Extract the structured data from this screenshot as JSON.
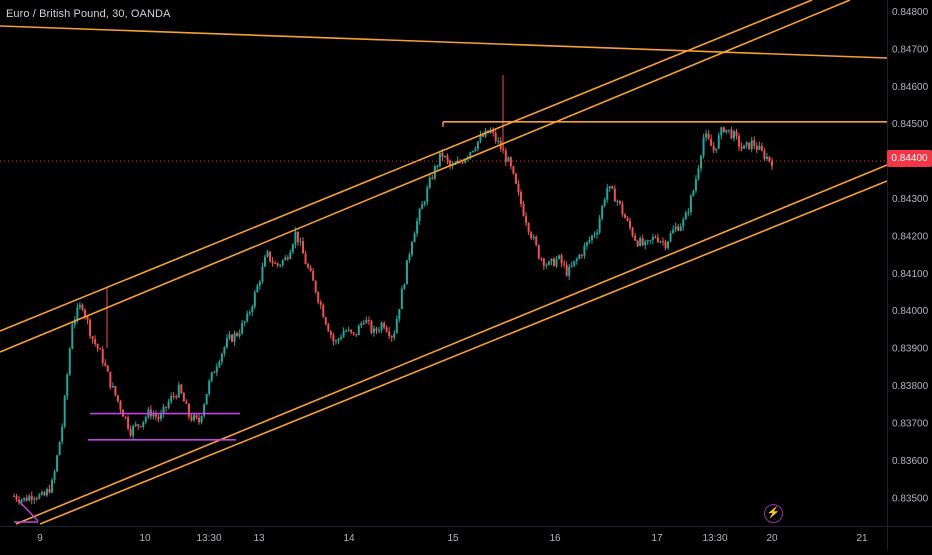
{
  "title": "Euro / British Pound, 30, OANDA",
  "current_price": "0.84400",
  "colors": {
    "up": "#26a69a",
    "down": "#ef5350",
    "trendline": "#f7a035",
    "range": "#c542e8",
    "price_line": "#f23645",
    "axis_text": "#b2b5be"
  },
  "icons": {
    "bolt": "lightning-bolt-icon"
  },
  "chart_data": {
    "type": "candlestick",
    "title": "Euro / British Pound, 30, OANDA",
    "ylim": [
      0.8347,
      0.8482
    ],
    "y_ticks": [
      "0.84800",
      "0.84700",
      "0.84600",
      "0.84500",
      "0.84400",
      "0.84300",
      "0.84200",
      "0.84100",
      "0.84000",
      "0.83900",
      "0.83800",
      "0.83700",
      "0.83600",
      "0.83500"
    ],
    "x_ticks": [
      "9",
      "10",
      "13:30",
      "13",
      "14",
      "15",
      "16",
      "17",
      "13:30",
      "20",
      "21"
    ],
    "grid": false,
    "current_price": 0.844,
    "price_path": [
      [
        "9",
        0.83505
      ],
      [
        "9",
        0.83495
      ],
      [
        "9",
        0.8351
      ],
      [
        "9",
        0.835
      ],
      [
        "9",
        0.8354
      ],
      [
        "9",
        0.837
      ],
      [
        "9",
        0.8397
      ],
      [
        "9",
        0.8402
      ],
      [
        "9",
        0.8393
      ],
      [
        "9",
        0.8388
      ],
      [
        "9",
        0.838
      ],
      [
        "10",
        0.8374
      ],
      [
        "10",
        0.8368
      ],
      [
        "10",
        0.837
      ],
      [
        "10",
        0.8373
      ],
      [
        "10",
        0.8371
      ],
      [
        "13:30",
        0.8376
      ],
      [
        "13:30",
        0.8379
      ],
      [
        "13:30",
        0.8372
      ],
      [
        "13:30",
        0.837
      ],
      [
        "13:30",
        0.838
      ],
      [
        "13",
        0.8387
      ],
      [
        "13",
        0.8392
      ],
      [
        "13",
        0.8394
      ],
      [
        "13",
        0.8398
      ],
      [
        "13",
        0.8406
      ],
      [
        "13",
        0.8415
      ],
      [
        "13",
        0.8412
      ],
      [
        "13",
        0.8414
      ],
      [
        "13",
        0.8421
      ],
      [
        "13",
        0.8413
      ],
      [
        "13",
        0.8406
      ],
      [
        "14",
        0.8398
      ],
      [
        "14",
        0.8391
      ],
      [
        "14",
        0.8395
      ],
      [
        "14",
        0.8393
      ],
      [
        "14",
        0.8398
      ],
      [
        "14",
        0.8394
      ],
      [
        "14",
        0.8397
      ],
      [
        "14",
        0.8393
      ],
      [
        "14",
        0.8406
      ],
      [
        "14",
        0.842
      ],
      [
        "14",
        0.8428
      ],
      [
        "14",
        0.8436
      ],
      [
        "15",
        0.8442
      ],
      [
        "15",
        0.8438
      ],
      [
        "15",
        0.844
      ],
      [
        "15",
        0.8443
      ],
      [
        "15",
        0.8446
      ],
      [
        "15",
        0.8448
      ],
      [
        "15",
        0.8444
      ],
      [
        "15",
        0.8439
      ],
      [
        "15",
        0.843
      ],
      [
        "15",
        0.8422
      ],
      [
        "16",
        0.8415
      ],
      [
        "16",
        0.8412
      ],
      [
        "16",
        0.8414
      ],
      [
        "16",
        0.841
      ],
      [
        "16",
        0.8414
      ],
      [
        "16",
        0.8418
      ],
      [
        "16",
        0.8422
      ],
      [
        "16",
        0.8433
      ],
      [
        "16",
        0.843
      ],
      [
        "16",
        0.8424
      ],
      [
        "16",
        0.8419
      ],
      [
        "17",
        0.8417
      ],
      [
        "17",
        0.842
      ],
      [
        "17",
        0.8418
      ],
      [
        "17",
        0.8422
      ],
      [
        "17",
        0.8424
      ],
      [
        "17",
        0.8433
      ],
      [
        "13:30",
        0.8447
      ],
      [
        "13:30",
        0.8443
      ],
      [
        "13:30",
        0.8449
      ],
      [
        "13:30",
        0.8447
      ],
      [
        "13:30",
        0.8443
      ],
      [
        "13:30",
        0.8445
      ],
      [
        "13:30",
        0.8442
      ],
      [
        "20",
        0.844
      ]
    ],
    "horizontal_lines": [
      {
        "value": 0.84505,
        "color": "orange",
        "from": "15",
        "to": "21"
      },
      {
        "value": 0.83725,
        "color": "purple",
        "from": "9",
        "to": "13:30"
      },
      {
        "value": 0.83655,
        "color": "purple",
        "from": "9",
        "to": "13:30"
      },
      {
        "value": 0.844,
        "color": "red",
        "style": "dotted"
      }
    ]
  }
}
